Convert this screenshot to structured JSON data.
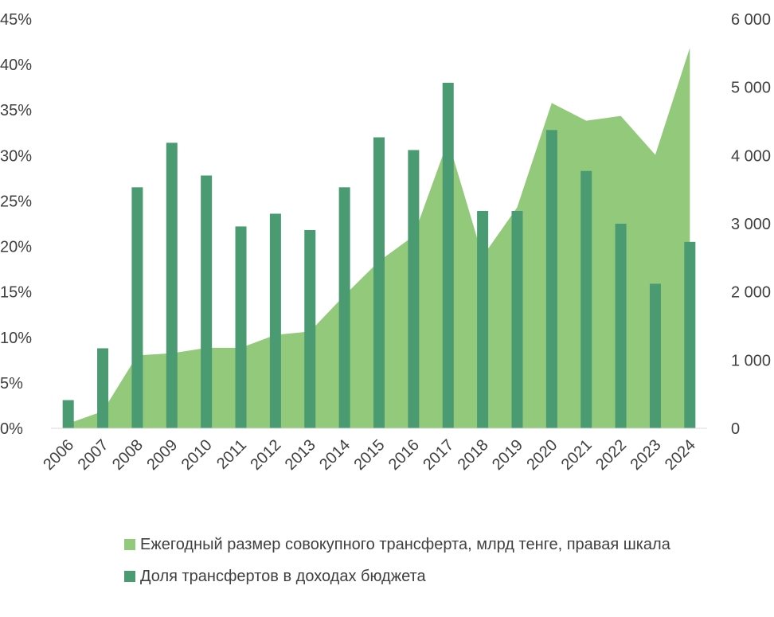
{
  "chart_data": {
    "type": "bar",
    "categories": [
      "2006",
      "2007",
      "2008",
      "2009",
      "2010",
      "2011",
      "2012",
      "2013",
      "2014",
      "2015",
      "2016",
      "2017",
      "2018",
      "2019",
      "2020",
      "2021",
      "2022",
      "2023",
      "2024"
    ],
    "series": [
      {
        "name": "Ежегодный размер совокупного трансферта, млрд тенге, правая шкала",
        "type": "area",
        "axis": "right",
        "color": "#92c97a",
        "values": [
          70,
          250,
          1070,
          1100,
          1180,
          1180,
          1370,
          1420,
          1950,
          2450,
          2820,
          4220,
          2520,
          3240,
          4770,
          4510,
          4580,
          4010,
          5580
        ]
      },
      {
        "name": "Доля трансфертов в доходах бюджета",
        "type": "bar",
        "axis": "left",
        "color": "#4a9a72",
        "values": [
          3.1,
          8.8,
          26.5,
          31.4,
          27.8,
          22.2,
          23.6,
          21.8,
          26.5,
          32.0,
          30.6,
          38.0,
          23.9,
          23.9,
          32.8,
          28.3,
          22.5,
          15.9,
          20.5
        ]
      }
    ],
    "y_left": {
      "ticks": [
        "0%",
        "5%",
        "10%",
        "15%",
        "20%",
        "25%",
        "30%",
        "35%",
        "40%",
        "45%"
      ],
      "ylim": [
        0,
        45
      ]
    },
    "y_right": {
      "ticks": [
        "0",
        "1 000",
        "2 000",
        "3 000",
        "4 000",
        "5 000",
        "6 000"
      ],
      "ylim": [
        0,
        6000
      ]
    },
    "grid": false,
    "legend_position": "bottom",
    "legend": [
      "Ежегодный размер совокупного трансферта, млрд тенге, правая шкала",
      "Доля трансфертов в доходах бюджета"
    ]
  }
}
